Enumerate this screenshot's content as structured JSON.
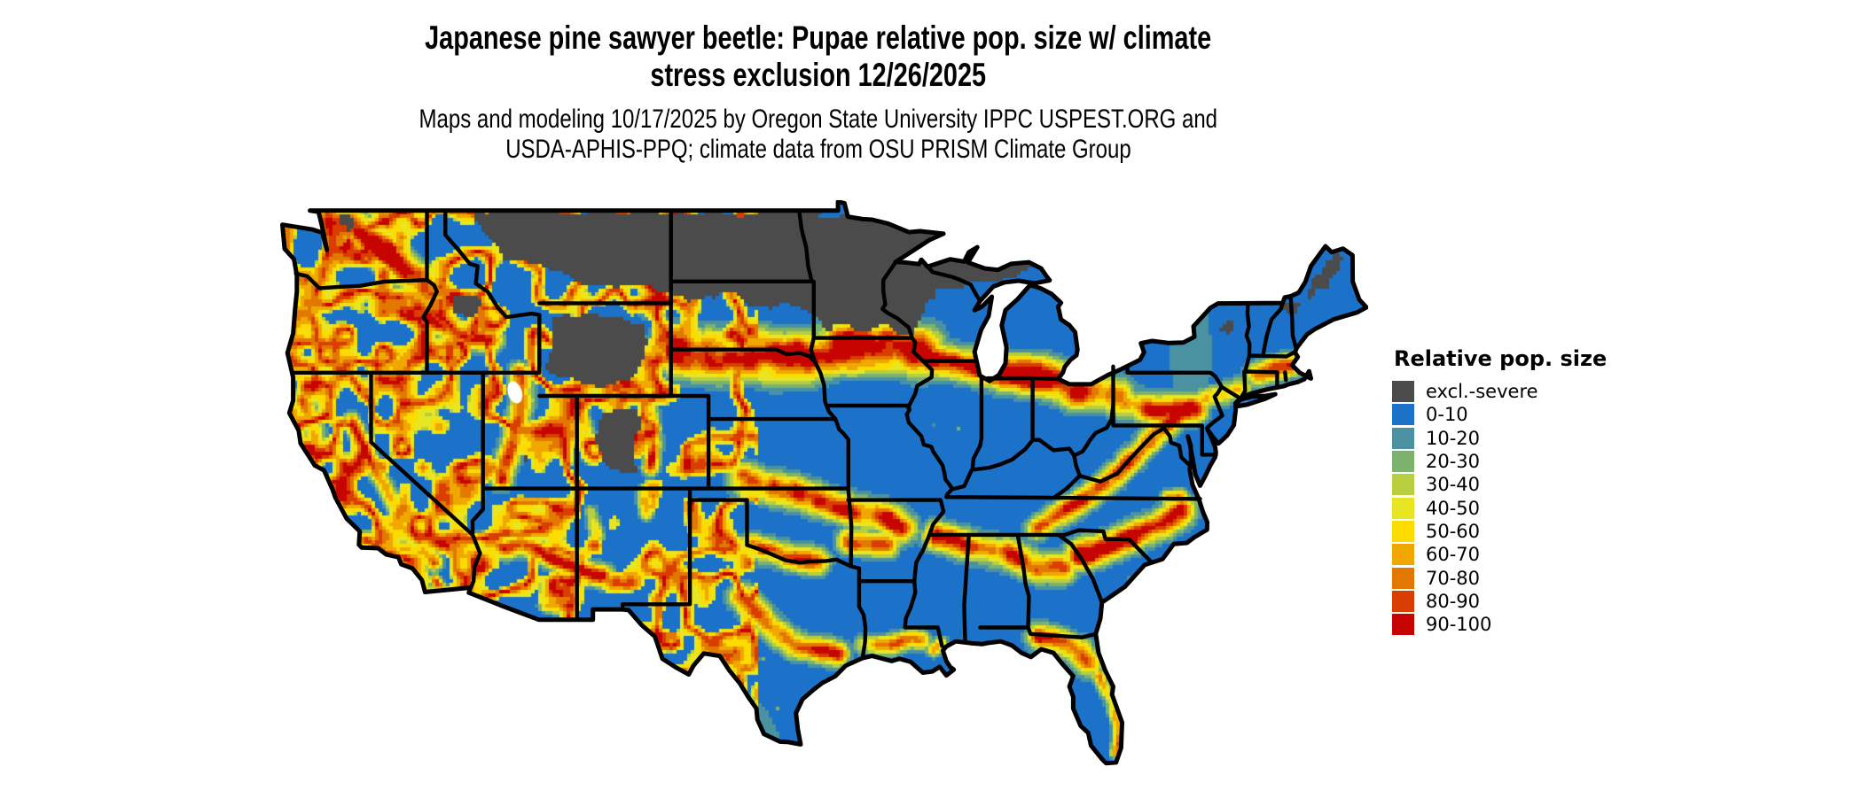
{
  "title": {
    "line1": "Japanese pine sawyer beetle: Pupae relative pop. size w/ climate",
    "line2": "stress exclusion 12/26/2025"
  },
  "subtitle": {
    "line1": "Maps and modeling 10/17/2025 by Oregon State University IPPC USPEST.ORG and",
    "line2": "USDA-APHIS-PPQ; climate data from OSU PRISM Climate Group"
  },
  "legend": {
    "title": "Relative pop. size",
    "items": [
      {
        "label": "excl.-severe",
        "color": "#4B4B4B"
      },
      {
        "label": "0-10",
        "color": "#1B72C8"
      },
      {
        "label": "10-20",
        "color": "#4A91A2"
      },
      {
        "label": "20-30",
        "color": "#7BB36E"
      },
      {
        "label": "30-40",
        "color": "#B8CE3F"
      },
      {
        "label": "40-50",
        "color": "#E8E622"
      },
      {
        "label": "50-60",
        "color": "#FBDB00"
      },
      {
        "label": "60-70",
        "color": "#F0A800"
      },
      {
        "label": "70-80",
        "color": "#E27800"
      },
      {
        "label": "80-90",
        "color": "#D93D00"
      },
      {
        "label": "90-100",
        "color": "#C70500"
      }
    ]
  },
  "map": {
    "border_color": "#000000",
    "water_color": "#FFFFFF",
    "background": "#FFFFFF"
  }
}
